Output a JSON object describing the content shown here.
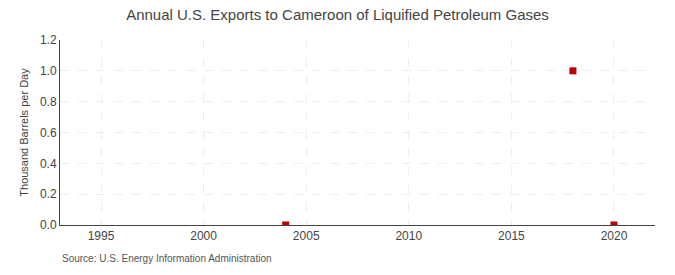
{
  "chart_data": {
    "type": "scatter",
    "title": "Annual U.S. Exports to Cameroon of Liquified Petroleum Gases",
    "y_label": "Thousand Barrels per Day",
    "annotations": [
      "Source: U.S. Energy Information Administration"
    ],
    "x": [
      2004,
      2018,
      2020
    ],
    "values": [
      0.0,
      1.0,
      0.0
    ],
    "color": "#bb0000",
    "marker": "square",
    "xlim": [
      1993,
      2022
    ],
    "xticks": [
      1995,
      2000,
      2005,
      2010,
      2015,
      2020
    ],
    "ylim": [
      0.0,
      1.2
    ],
    "yticks": [
      {
        "value": 0.0,
        "label": "0.0"
      },
      0.2,
      0.4,
      0.6,
      0.8,
      {
        "value": 1.0,
        "label": "1.0"
      },
      1.2
    ],
    "grid": true
  }
}
